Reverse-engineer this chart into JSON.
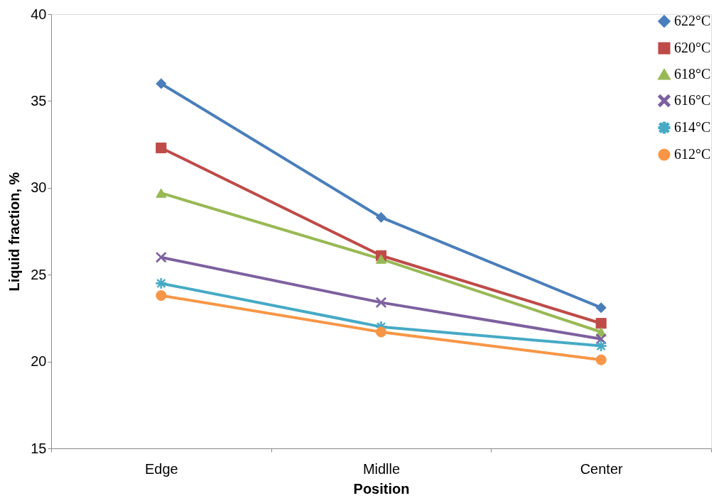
{
  "chart_data": {
    "type": "line",
    "xlabel": "Position",
    "ylabel": "Liquid fraction, %",
    "categories": [
      "Edge",
      "Midlle",
      "Center"
    ],
    "ylim": [
      15,
      40
    ],
    "yticks": [
      15,
      20,
      25,
      30,
      35,
      40
    ],
    "grid": false,
    "legend": "top right",
    "line_style": "solid",
    "series": [
      {
        "name": "622°C",
        "color": "#4a7ebb",
        "marker": "diamond",
        "values": [
          36.0,
          28.3,
          23.1
        ]
      },
      {
        "name": "620°C",
        "color": "#be4b48",
        "marker": "square",
        "values": [
          32.3,
          26.1,
          22.2
        ]
      },
      {
        "name": "618°C",
        "color": "#98b954",
        "marker": "triangle",
        "values": [
          29.7,
          25.9,
          21.7
        ]
      },
      {
        "name": "616°C",
        "color": "#7d60a0",
        "marker": "cross",
        "values": [
          26.0,
          23.4,
          21.3
        ]
      },
      {
        "name": "614°C",
        "color": "#46aac5",
        "marker": "star",
        "values": [
          24.5,
          22.0,
          20.9
        ]
      },
      {
        "name": "612°C",
        "color": "#f79646",
        "marker": "circle",
        "values": [
          23.8,
          21.7,
          20.1
        ]
      }
    ]
  }
}
